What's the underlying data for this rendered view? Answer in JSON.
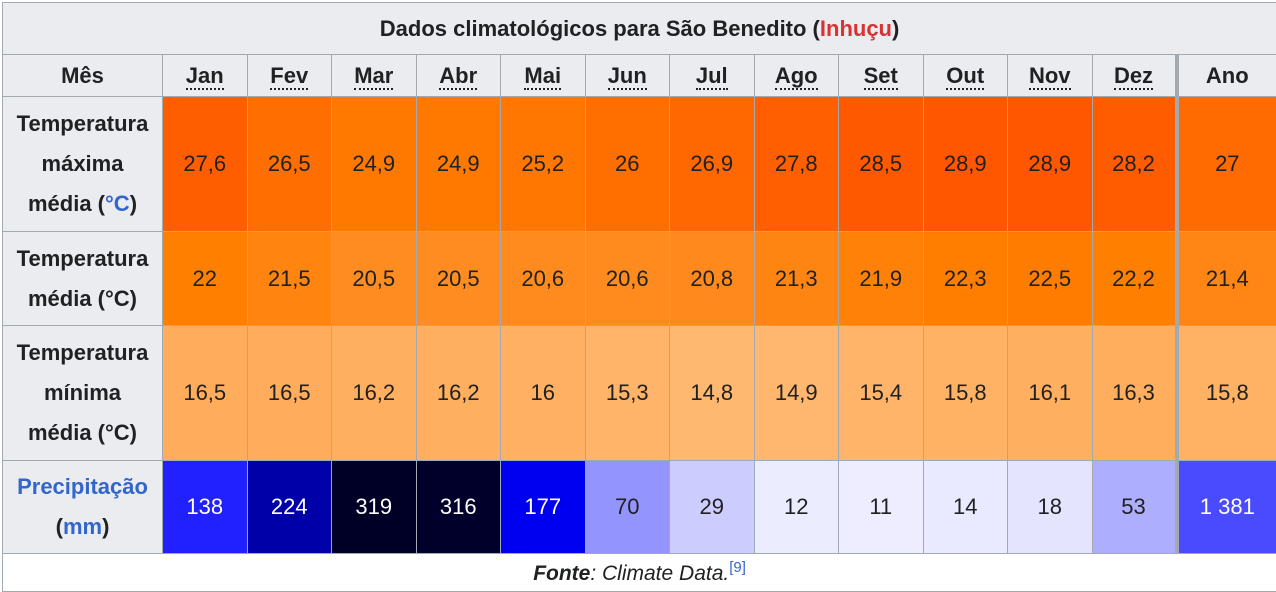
{
  "caption": {
    "prefix": "Dados climatológicos para São Benedito (",
    "link": "Inhuçu",
    "suffix": ")"
  },
  "header": {
    "month_label": "Mês",
    "months": [
      "Jan",
      "Fev",
      "Mar",
      "Abr",
      "Mai",
      "Jun",
      "Jul",
      "Ago",
      "Set",
      "Out",
      "Nov",
      "Dez"
    ],
    "year_label": "Ano"
  },
  "rows": [
    {
      "label_lines": [
        "Temperatura",
        "máxima"
      ],
      "label_last_prefix": "média (",
      "label_unit": "°C",
      "label_last_suffix": ")",
      "values": [
        "27,6",
        "26,5",
        "24,9",
        "24,9",
        "25,2",
        "26",
        "26,9",
        "27,8",
        "28,5",
        "28,9",
        "28,9",
        "28,2"
      ],
      "annual": "27",
      "colors": [
        "#ff5e00",
        "#ff6e00",
        "#ff7900",
        "#ff7900",
        "#ff7700",
        "#ff6f00",
        "#ff6700",
        "#ff5f00",
        "#ff5900",
        "#ff5600",
        "#ff5600",
        "#ff5c00"
      ],
      "annual_color": "#ff6b00",
      "text_color": "#202122"
    },
    {
      "label_lines": [
        "Temperatura"
      ],
      "label_last_prefix": "média (°C)",
      "label_unit": "",
      "label_last_suffix": "",
      "values": [
        "22",
        "21,5",
        "20,5",
        "20,5",
        "20,6",
        "20,6",
        "20,8",
        "21,3",
        "21,9",
        "22,3",
        "22,5",
        "22,2"
      ],
      "annual": "21,4",
      "colors": [
        "#ff8000",
        "#ff8410",
        "#ff8c20",
        "#ff8c20",
        "#ff8b1f",
        "#ff8b1f",
        "#ff891c",
        "#ff8513",
        "#ff8108",
        "#ff7e00",
        "#ff7c00",
        "#ff7f00"
      ],
      "annual_color": "#ff8614",
      "text_color": "#202122"
    },
    {
      "label_lines": [
        "Temperatura",
        "mínima"
      ],
      "label_last_prefix": "média (°C)",
      "label_unit": "",
      "label_last_suffix": "",
      "values": [
        "16,5",
        "16,5",
        "16,2",
        "16,2",
        "16",
        "15,3",
        "14,8",
        "14,9",
        "15,4",
        "15,8",
        "16,1",
        "16,3"
      ],
      "annual": "15,8",
      "colors": [
        "#ffad5c",
        "#ffad5c",
        "#ffaf5f",
        "#ffaf5f",
        "#ffb062",
        "#ffb46a",
        "#ffb870",
        "#ffb76f",
        "#ffb469",
        "#ffb164",
        "#ffaf60",
        "#ffae5e"
      ],
      "annual_color": "#ffb164",
      "text_color": "#202122"
    },
    {
      "label_lines": [],
      "label_link": "Precipitação",
      "label_last_prefix": "(",
      "label_unit": "mm",
      "label_last_suffix": ")",
      "values": [
        "138",
        "224",
        "319",
        "316",
        "177",
        "70",
        "29",
        "12",
        "11",
        "14",
        "18",
        "53"
      ],
      "annual": "1 381",
      "colors": [
        "#2121ff",
        "#0000a8",
        "#000026",
        "#00002a",
        "#0000f0",
        "#9494ff",
        "#ccccff",
        "#ececff",
        "#ededff",
        "#e9e9ff",
        "#e4e4ff",
        "#aeaeff"
      ],
      "annual_color": "#4a4aff",
      "text_colors": [
        "#ffffff",
        "#ffffff",
        "#ffffff",
        "#ffffff",
        "#ffffff",
        "#202122",
        "#202122",
        "#202122",
        "#202122",
        "#202122",
        "#202122",
        "#202122"
      ],
      "annual_text_color": "#ffffff"
    }
  ],
  "footer": {
    "source_label": "Fonte",
    "source_text": ": Climate Data.",
    "ref": "[9]"
  }
}
